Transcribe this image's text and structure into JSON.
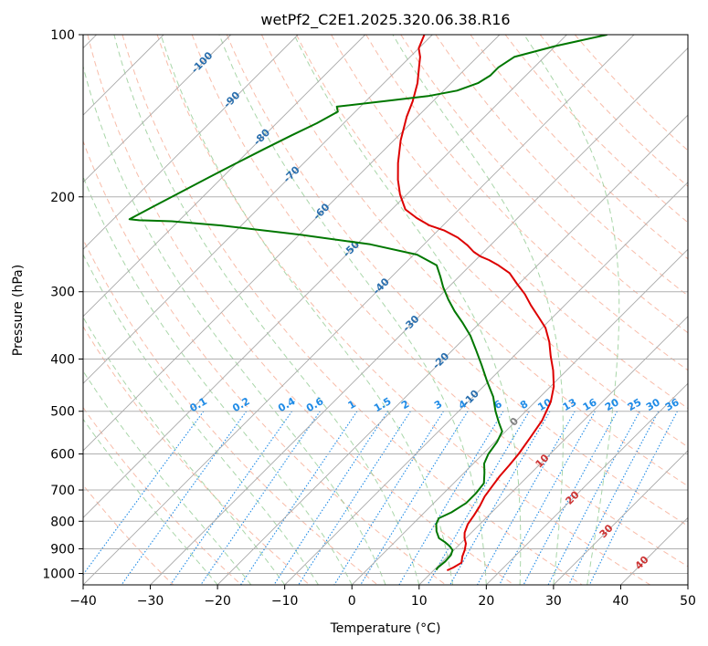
{
  "chart_data": {
    "type": "line",
    "title": "wetPf2_C2E1.2025.320.06.38.R16",
    "xlabel": "Temperature (°C)",
    "ylabel": "Pressure (hPa)",
    "xlim": [
      -40,
      50
    ],
    "ylim": [
      1050,
      100
    ],
    "y_scale": "log",
    "x_ticks": [
      -40,
      -30,
      -20,
      -10,
      0,
      10,
      20,
      30,
      40,
      50
    ],
    "y_ticks": [
      100,
      200,
      300,
      400,
      500,
      600,
      700,
      800,
      900,
      1000
    ],
    "grid": true,
    "skew_degrees": 45,
    "series": [
      {
        "color": "#dd0000",
        "points": [
          [
            12.0,
            987
          ],
          [
            12.5,
            975
          ],
          [
            13.0,
            955
          ],
          [
            12.2,
            930
          ],
          [
            11.6,
            905
          ],
          [
            10.8,
            880
          ],
          [
            9.8,
            860
          ],
          [
            9.0,
            840
          ],
          [
            8.2,
            810
          ],
          [
            7.8,
            780
          ],
          [
            7.3,
            750
          ],
          [
            6.6,
            720
          ],
          [
            6.2,
            690
          ],
          [
            5.8,
            660
          ],
          [
            5.6,
            630
          ],
          [
            5.3,
            600
          ],
          [
            4.6,
            560
          ],
          [
            3.8,
            520
          ],
          [
            2.3,
            480
          ],
          [
            0.5,
            450
          ],
          [
            -2.0,
            420
          ],
          [
            -4.5,
            395
          ],
          [
            -6.8,
            372
          ],
          [
            -9.5,
            350
          ],
          [
            -12.0,
            335
          ],
          [
            -15.0,
            318
          ],
          [
            -17.6,
            303
          ],
          [
            -20.3,
            290
          ],
          [
            -23.0,
            277
          ],
          [
            -25.8,
            268
          ],
          [
            -28.0,
            262
          ],
          [
            -29.8,
            258
          ],
          [
            -31.5,
            253
          ],
          [
            -33.4,
            246
          ],
          [
            -36.0,
            238
          ],
          [
            -39.0,
            231
          ],
          [
            -42.0,
            226
          ],
          [
            -45.0,
            219
          ],
          [
            -48.0,
            211
          ],
          [
            -51.0,
            198
          ],
          [
            -53.5,
            186
          ],
          [
            -56.0,
            173
          ],
          [
            -59.0,
            157
          ],
          [
            -61.6,
            142
          ],
          [
            -63.0,
            133
          ],
          [
            -65.0,
            123
          ],
          [
            -67.4,
            114
          ],
          [
            -68.5,
            110
          ],
          [
            -70.0,
            106
          ],
          [
            -71.2,
            100
          ]
        ]
      },
      {
        "color": "#007700",
        "points": [
          [
            10.3,
            985
          ],
          [
            10.2,
            975
          ],
          [
            10.4,
            950
          ],
          [
            10.3,
            925
          ],
          [
            9.8,
            905
          ],
          [
            8.8,
            890
          ],
          [
            7.5,
            875
          ],
          [
            6.0,
            860
          ],
          [
            4.6,
            835
          ],
          [
            3.5,
            810
          ],
          [
            3.0,
            790
          ],
          [
            4.0,
            770
          ],
          [
            4.8,
            740
          ],
          [
            4.8,
            710
          ],
          [
            4.5,
            680
          ],
          [
            3.0,
            650
          ],
          [
            1.6,
            625
          ],
          [
            0.8,
            600
          ],
          [
            0.3,
            570
          ],
          [
            -0.5,
            545
          ],
          [
            -2.3,
            525
          ],
          [
            -4.5,
            500
          ],
          [
            -7.0,
            470
          ],
          [
            -10.2,
            440
          ],
          [
            -13.5,
            410
          ],
          [
            -16.5,
            385
          ],
          [
            -19.5,
            362
          ],
          [
            -22.5,
            343
          ],
          [
            -25.5,
            326
          ],
          [
            -28.2,
            310
          ],
          [
            -30.8,
            294
          ],
          [
            -32.8,
            281
          ],
          [
            -35.0,
            268
          ],
          [
            -39.5,
            256
          ],
          [
            -48.0,
            245
          ],
          [
            -60.0,
            235
          ],
          [
            -73.0,
            226
          ],
          [
            -81.0,
            222
          ],
          [
            -86.0,
            221
          ],
          [
            -87.6,
            220
          ],
          [
            -86.0,
            209
          ],
          [
            -84.0,
            196
          ],
          [
            -82.0,
            184
          ],
          [
            -80.0,
            173
          ],
          [
            -78.0,
            163
          ],
          [
            -76.0,
            154
          ],
          [
            -74.0,
            146
          ],
          [
            -72.6,
            139
          ],
          [
            -73.5,
            136
          ],
          [
            -67.5,
            133
          ],
          [
            -61.5,
            130
          ],
          [
            -58.0,
            127
          ],
          [
            -56.0,
            123
          ],
          [
            -55.3,
            119
          ],
          [
            -55.3,
            115
          ],
          [
            -54.5,
            110
          ],
          [
            -50.0,
            105
          ],
          [
            -44.0,
            100
          ]
        ]
      }
    ],
    "dry_adiabats_c": [
      -30,
      -20,
      -10,
      0,
      10,
      20,
      30,
      40,
      50,
      60,
      70,
      80,
      90,
      100,
      110,
      120,
      130,
      140,
      150,
      160
    ],
    "moist_adiabats_c": [
      -20,
      -15,
      -10,
      -5,
      0,
      5,
      10,
      15,
      20,
      25,
      30,
      35
    ],
    "isotherm_labels": [
      "-100",
      "-90",
      "-80",
      "-70",
      "-60",
      "-50",
      "-40",
      "-30",
      "-20",
      "-10",
      "0",
      "10",
      "20",
      "30",
      "40"
    ],
    "mixing_ratios": [
      "0.1",
      "0.2",
      "0.4",
      "0.6",
      "1",
      "1.5",
      "2",
      "3",
      "4",
      "6",
      "8",
      "10",
      "13",
      "16",
      "20",
      "25",
      "30",
      "36"
    ],
    "colors": {
      "isotherm_cold": "#2a6fae",
      "isotherm_zero": "#808080",
      "isotherm_warm": "#cc3333",
      "mixing_ratio": "#1f8be6",
      "dry_adiabat": "#f5a58c",
      "moist_adiabat": "#8cc88c",
      "isobar_grid": "#b0b0b0",
      "skew_grid": "#a9a9a9"
    }
  }
}
